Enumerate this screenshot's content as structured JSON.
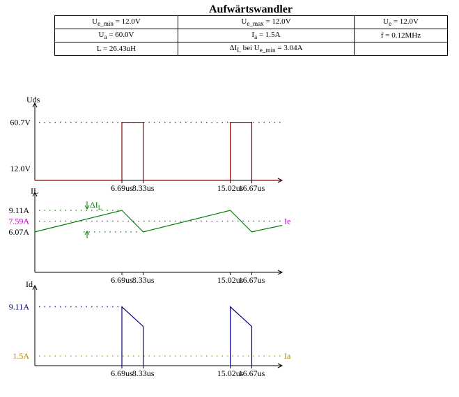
{
  "title": "Aufwärtswandler",
  "params": {
    "row1": {
      "c1": {
        "label": "U",
        "sub": "e_min",
        "value": " = 12.0V"
      },
      "c2": {
        "label": "U",
        "sub": "e_max",
        "value": " = 12.0V"
      },
      "c3": {
        "label": "U",
        "sub": "e",
        "value": " = 12.0V"
      }
    },
    "row2": {
      "c1": {
        "label": "U",
        "sub": "a",
        "value": " = 60.0V"
      },
      "c2": {
        "label": "I",
        "sub": "a",
        "value": " = 1.5A"
      },
      "c3": {
        "text": "f = 0.12MHz"
      }
    },
    "row3": {
      "c1": {
        "text": "L = 26.43uH"
      },
      "c2": {
        "label": "ΔI",
        "sub": "L",
        "mid": " bei U",
        "sub2": "e_min",
        "value": " = 3.04A"
      },
      "c3": {
        "text": ""
      }
    }
  },
  "colors": {
    "axis": "#000000",
    "uds": "#8b0000",
    "il": "#008000",
    "ie": "#c000c0",
    "id": "#000080",
    "ia": "#b08800"
  },
  "time_ticks": [
    "6.69us",
    "8.33us",
    "15.02us",
    "16.67us"
  ],
  "chart_data": [
    {
      "type": "line",
      "ylabel": "Uds",
      "xlabel": "",
      "y_ticks": [
        "60.7V",
        "12.0V"
      ],
      "x": [
        0,
        6.69,
        6.69,
        8.33,
        8.33,
        15.02,
        15.02,
        16.67,
        16.67,
        19.0
      ],
      "y": [
        0,
        0,
        60.7,
        60.7,
        0,
        0,
        60.7,
        60.7,
        0,
        0
      ],
      "ylim": [
        0,
        72
      ]
    },
    {
      "type": "line",
      "ylabel": "IL",
      "xlabel": "",
      "y_ticks": [
        "9.11A",
        "7.59A",
        "6.07A"
      ],
      "delta_label": "ΔI",
      "delta_sub": "L",
      "ie_label": "Ie",
      "x": [
        0,
        6.69,
        8.33,
        15.02,
        16.67,
        19.0
      ],
      "y": [
        6.07,
        9.11,
        6.07,
        9.11,
        6.07,
        7.0
      ],
      "ylim": [
        0,
        11
      ]
    },
    {
      "type": "line",
      "ylabel": "Id",
      "xlabel": "",
      "y_ticks": [
        "9.11A",
        "1.5A"
      ],
      "ia_label": "Ia",
      "x": [
        6.69,
        6.69,
        8.33,
        8.33,
        15.02,
        15.02,
        16.67,
        16.67
      ],
      "y": [
        0,
        9.11,
        6.07,
        0,
        0,
        9.11,
        6.07,
        0
      ],
      "ylim": [
        0,
        11
      ]
    }
  ]
}
